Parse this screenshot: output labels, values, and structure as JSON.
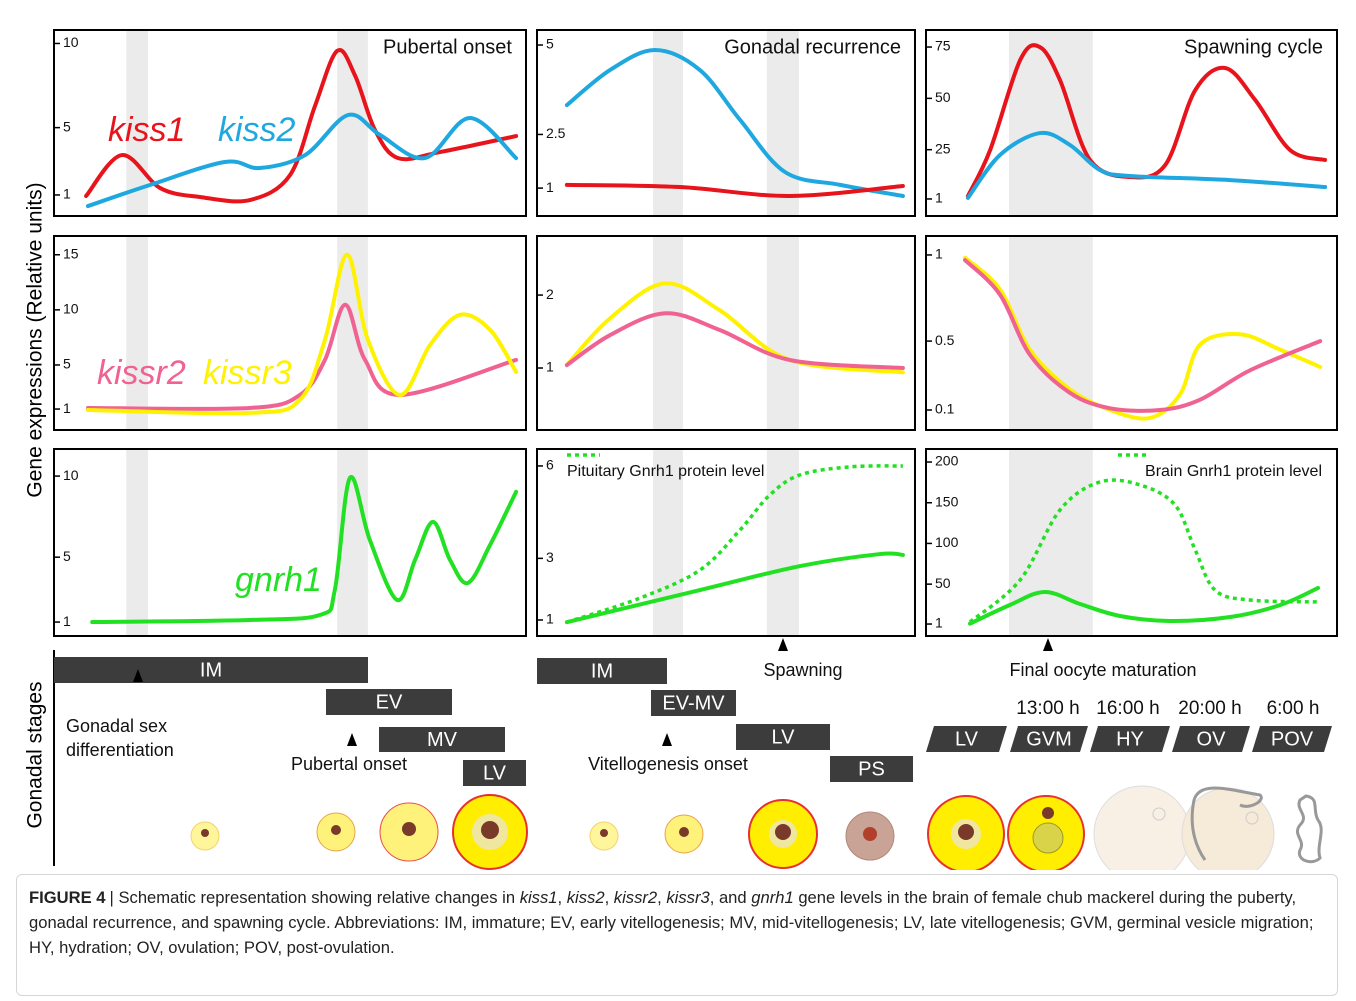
{
  "y_axis_label": "Gene expressions (Relative units)",
  "gonadal_stages_label": "Gonadal stages",
  "chart_data": [
    {
      "type": "line",
      "title": "Pubertal onset",
      "xlim": [
        0,
        100
      ],
      "ylim": [
        -0.25,
        10.8
      ],
      "yticks": [
        1,
        5,
        10
      ],
      "shaded_x": [
        [
          15.3,
          19.9
        ],
        [
          60.0,
          66.5
        ]
      ],
      "series": [
        {
          "name": "kiss1",
          "color": "#e8141c",
          "x": [
            6.8,
            14.4,
            22.5,
            30.9,
            41.5,
            50,
            55.3,
            60,
            63.8,
            68,
            72.9,
            81.8,
            97.9
          ],
          "values": [
            0.94,
            3.37,
            1.41,
            0.88,
            0.7,
            2.18,
            6.29,
            9.56,
            8.08,
            4.86,
            3.19,
            3.55,
            4.5
          ]
        },
        {
          "name": "kiss2",
          "color": "#1fa8e0",
          "x": [
            7.2,
            20.3,
            36.2,
            43.6,
            53.2,
            62.3,
            69.1,
            78.6,
            88.1,
            97.9
          ],
          "values": [
            0.34,
            1.59,
            2.96,
            2.6,
            3.37,
            5.75,
            4.56,
            3.19,
            5.57,
            3.19
          ]
        }
      ]
    },
    {
      "type": "line",
      "title": "Gonadal recurrence",
      "xlim": [
        0,
        100
      ],
      "ylim": [
        0.22,
        5.42
      ],
      "yticks": [
        1,
        2.5,
        5
      ],
      "shaded_x": [
        [
          30.7,
          38.6
        ],
        [
          60.8,
          69.3
        ]
      ],
      "series": [
        {
          "color": "#1fa8e0",
          "x": [
            7.9,
            19.3,
            31.2,
            43.1,
            53.7,
            65.6,
            80.2,
            96.8
          ],
          "values": [
            3.32,
            4.3,
            4.86,
            4.3,
            2.91,
            1.45,
            1.09,
            0.78
          ]
        },
        {
          "color": "#e8141c",
          "x": [
            7.9,
            37.8,
            66.9,
            96.8
          ],
          "values": [
            1.09,
            1.03,
            0.78,
            1.06
          ]
        }
      ]
    },
    {
      "type": "line",
      "title": "Spawning cycle",
      "xlim": [
        0,
        100
      ],
      "ylim": [
        -7.3,
        83.3
      ],
      "yticks": [
        1,
        25,
        50,
        75
      ],
      "shaded_x": [
        [
          20.2,
          40.6
        ]
      ],
      "series": [
        {
          "color": "#e8141c",
          "x": [
            10.2,
            15.6,
            22.9,
            27.7,
            32.6,
            39.9,
            49.6,
            58.2,
            65.5,
            72.8,
            80.1,
            88.6,
            97.1
          ],
          "values": [
            2.4,
            24.8,
            68.6,
            75,
            58.9,
            20,
            11.7,
            17.5,
            54,
            64.8,
            49.2,
            24.8,
            20
          ]
        },
        {
          "color": "#1fa8e0",
          "x": [
            10.2,
            18,
            27.7,
            35,
            42.3,
            49.6,
            74,
            97.1
          ],
          "values": [
            1.5,
            22.4,
            33.1,
            27.3,
            15.1,
            12.2,
            10.2,
            6.8
          ]
        }
      ]
    },
    {
      "type": "line",
      "xlim": [
        0,
        100
      ],
      "ylim": [
        -0.9,
        16.7
      ],
      "yticks": [
        1,
        5,
        10,
        15
      ],
      "shaded_x": [
        [
          15.3,
          19.9
        ],
        [
          60.0,
          66.5
        ]
      ],
      "series": [
        {
          "name": "kissr2",
          "color": "#f06292",
          "x": [
            7.2,
            41.5,
            52.1,
            57.4,
            61.7,
            65.9,
            73.3,
            97.9
          ],
          "values": [
            1.1,
            1.1,
            2.28,
            5.46,
            10.46,
            5.46,
            2.28,
            5.46
          ]
        },
        {
          "name": "kissr3",
          "color": "#fff200",
          "x": [
            7.2,
            41.5,
            52.1,
            57.4,
            62.1,
            66.5,
            73.3,
            79.7,
            86,
            92.4,
            97.9
          ],
          "values": [
            0.92,
            0.65,
            1.83,
            7.28,
            15,
            7.28,
            2.28,
            6.83,
            9.55,
            8.19,
            4.37
          ]
        }
      ]
    },
    {
      "type": "line",
      "xlim": [
        0,
        100
      ],
      "ylim": [
        0.15,
        2.81
      ],
      "yticks": [
        1,
        2
      ],
      "shaded_x": [
        [
          30.7,
          38.6
        ],
        [
          60.8,
          69.3
        ]
      ],
      "series": [
        {
          "color": "#fff200",
          "x": [
            7.9,
            19.3,
            33.9,
            48.4,
            66.9,
            96.8
          ],
          "values": [
            1.04,
            1.68,
            2.16,
            1.79,
            1.11,
            0.94
          ]
        },
        {
          "color": "#f06292",
          "x": [
            7.9,
            19.3,
            33.9,
            48.4,
            66.9,
            96.8
          ],
          "values": [
            1.04,
            1.45,
            1.75,
            1.52,
            1.11,
            1
          ]
        }
      ]
    },
    {
      "type": "line",
      "xlim": [
        0,
        100
      ],
      "ylim": [
        -0.016,
        1.11
      ],
      "yticks": [
        0.1,
        0.5,
        1
      ],
      "shaded_x": [
        [
          20.2,
          40.6
        ]
      ],
      "series": [
        {
          "color": "#fff200",
          "x": [
            9.5,
            18,
            25.3,
            35,
            44.8,
            54.5,
            61.8,
            66.7,
            76.4,
            86.2,
            95.9
          ],
          "values": [
            0.984,
            0.8,
            0.45,
            0.22,
            0.1,
            0.054,
            0.19,
            0.48,
            0.54,
            0.45,
            0.35
          ]
        },
        {
          "color": "#f06292",
          "x": [
            9.5,
            18,
            25.3,
            35,
            44.8,
            56.9,
            66.7,
            78.8,
            95.9
          ],
          "values": [
            0.97,
            0.77,
            0.42,
            0.2,
            0.11,
            0.1,
            0.16,
            0.33,
            0.5
          ]
        }
      ]
    },
    {
      "type": "line",
      "xlim": [
        0,
        100
      ],
      "ylim": [
        0.14,
        11.67
      ],
      "yticks": [
        1,
        5,
        10
      ],
      "shaded_x": [
        [
          15.3,
          19.9
        ],
        [
          60.0,
          66.5
        ]
      ],
      "series": [
        {
          "name": "gnrh1",
          "color": "#22e022",
          "x": [
            8.1,
            41.5,
            56.4,
            59.5,
            62.7,
            66.9,
            72.7,
            76.5,
            80.3,
            83.9,
            87.7,
            92.4,
            97.9
          ],
          "values": [
            1,
            1.13,
            1.44,
            2.98,
            9.89,
            6.07,
            2.36,
            4.83,
            7.18,
            4.83,
            3.41,
            5.76,
            9.03
          ]
        }
      ]
    },
    {
      "type": "line",
      "xlim": [
        0,
        100
      ],
      "ylim": [
        0.48,
        6.55
      ],
      "yticks": [
        1,
        3,
        6
      ],
      "shaded_x": [
        [
          30.7,
          38.6
        ],
        [
          60.8,
          69.3
        ]
      ],
      "series": [
        {
          "name": "Pituitary Gnrh1 protein level",
          "color": "#22e022",
          "line_style": "dotted",
          "x": [
            7.9,
            27.2,
            43.1,
            53.7,
            61.6,
            69.6,
            82.8,
            96.8
          ],
          "values": [
            0.93,
            1.71,
            2.62,
            3.92,
            5.06,
            5.71,
            5.97,
            6
          ]
        },
        {
          "color": "#22e022",
          "x": [
            7.9,
            43.1,
            69.6,
            90.7,
            96.8
          ],
          "values": [
            0.93,
            1.97,
            2.75,
            3.14,
            3.11
          ]
        }
      ]
    },
    {
      "type": "line",
      "xlim": [
        0,
        100
      ],
      "ylim": [
        -13.7,
        216
      ],
      "yticks": [
        1,
        50,
        100,
        150,
        200
      ],
      "shaded_x": [
        [
          20.2,
          40.6
        ]
      ],
      "series": [
        {
          "name": "Brain Gnrh1 protein level",
          "color": "#22e022",
          "line_style": "dotted",
          "x": [
            10.7,
            22.9,
            32.6,
            42.3,
            52.1,
            60.6,
            65.5,
            70.3,
            78.8,
            95.9
          ],
          "values": [
            3.5,
            55.1,
            141.1,
            175.5,
            171.8,
            147.2,
            92,
            42.8,
            30.5,
            28.1
          ]
        },
        {
          "color": "#22e022",
          "x": [
            10.7,
            20.4,
            28.9,
            37.5,
            47.2,
            59.4,
            74,
            86.2,
            95.4
          ],
          "values": [
            1.5,
            24.4,
            40.4,
            25.6,
            10.9,
            4.7,
            9.6,
            24.4,
            45.3
          ]
        }
      ]
    }
  ],
  "stages": {
    "bars": [
      "IM",
      "EV",
      "MV",
      "LV",
      "IM",
      "EV-MV",
      "LV",
      "PS",
      "LV",
      "GVM",
      "HY",
      "OV",
      "POV"
    ],
    "times": [
      "13:00 h",
      "16:00 h",
      "20:00 h",
      "6:00 h"
    ],
    "events": [
      [
        "Gonadal sex",
        "differentiation"
      ],
      [
        "Pubertal onset"
      ],
      [
        "Vitellogenesis onset"
      ],
      [
        "Spawning"
      ],
      [
        "Final oocyte maturation"
      ]
    ]
  },
  "caption": {
    "label": "FIGURE 4",
    "runs": [
      "| Schematic representation showing relative changes in ",
      "kiss1",
      ", ",
      "kiss2",
      ", ",
      "kissr2",
      ", ",
      "kissr3",
      ", and ",
      "gnrh1",
      " gene levels in the brain of female chub mackerel during the puberty, gonadal recurrence, and spawning cycle. Abbreviations: IM, immature; EV, early vitellogenesis; MV, mid-vitellogenesis; LV, late vitellogenesis; GVM, germinal vesicle migration; HY, hydration; OV, ovulation; POV, post-ovulation."
    ]
  }
}
